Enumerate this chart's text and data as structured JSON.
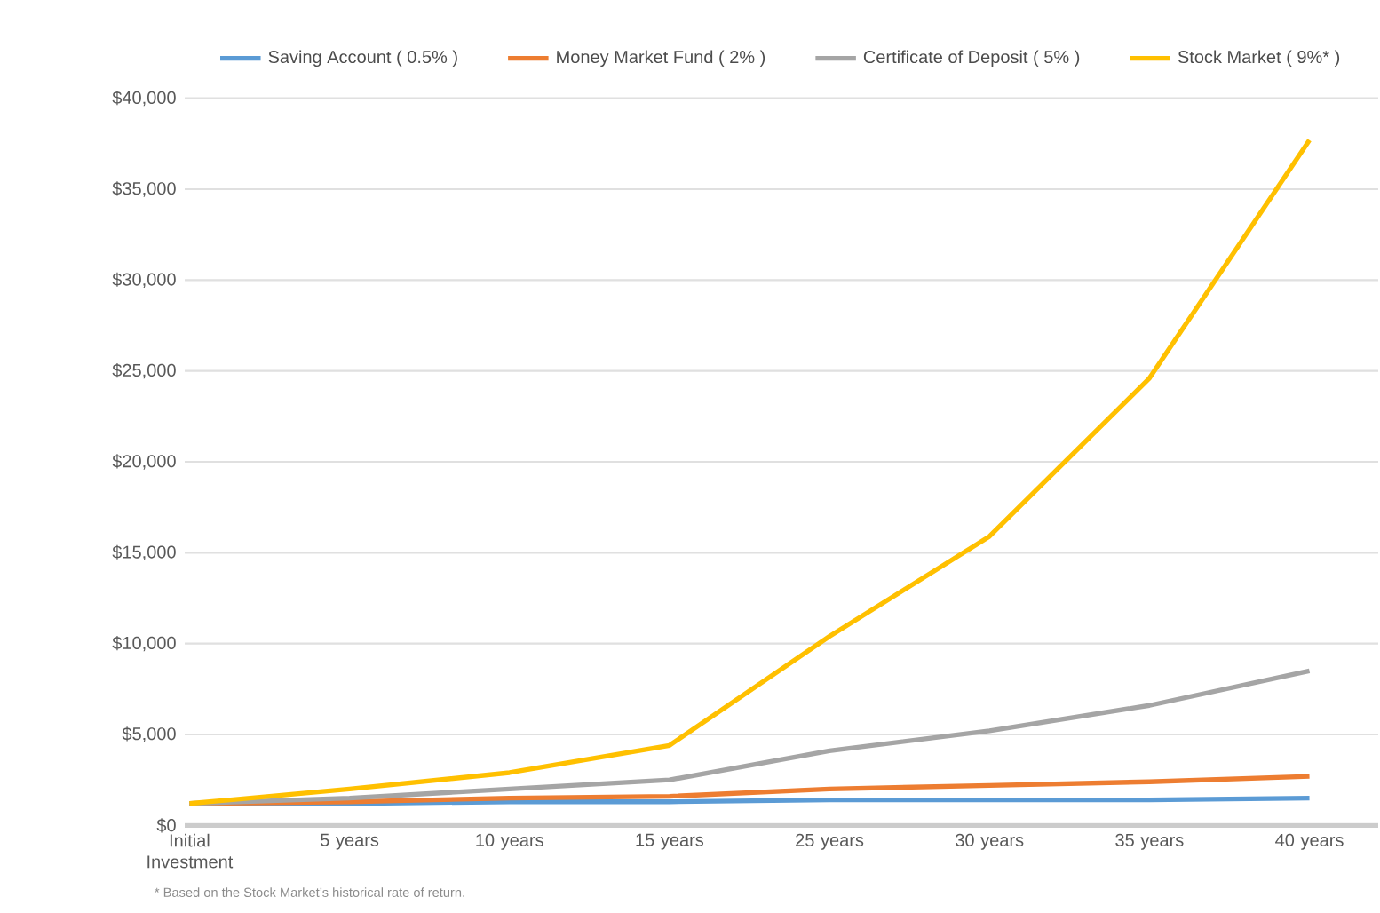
{
  "chart_data": {
    "type": "line",
    "categories": [
      "Initial Investment",
      "5 years",
      "10 years",
      "15 years",
      "25 years",
      "30 years",
      "35 years",
      "40 years"
    ],
    "series": [
      {
        "name": "Saving Account ( 0.5% )",
        "color": "#5b9bd5",
        "values": [
          1200,
          1200,
          1300,
          1300,
          1400,
          1400,
          1400,
          1500
        ]
      },
      {
        "name": "Money Market Fund ( 2% )",
        "color": "#ed7d31",
        "values": [
          1200,
          1300,
          1500,
          1600,
          2000,
          2200,
          2400,
          2700
        ]
      },
      {
        "name": "Certificate of Deposit ( 5% )",
        "color": "#a5a5a5",
        "values": [
          1200,
          1500,
          2000,
          2500,
          4100,
          5200,
          6600,
          8500
        ]
      },
      {
        "name": "Stock Market ( 9%* )",
        "color": "#ffc000",
        "values": [
          1200,
          2000,
          2900,
          4400,
          10400,
          15900,
          24600,
          37700
        ]
      }
    ],
    "ylim": [
      0,
      40000
    ],
    "yticks": [
      {
        "value": 0,
        "label": "$0"
      },
      {
        "value": 5000,
        "label": "$5,000"
      },
      {
        "value": 10000,
        "label": "$10,000"
      },
      {
        "value": 15000,
        "label": "$15,000"
      },
      {
        "value": 20000,
        "label": "$20,000"
      },
      {
        "value": 25000,
        "label": "$25,000"
      },
      {
        "value": 30000,
        "label": "$30,000"
      },
      {
        "value": 35000,
        "label": "$35,000"
      },
      {
        "value": 40000,
        "label": "$40,000"
      }
    ],
    "grid": "y",
    "legend": "top",
    "marker": "none",
    "line_style": "solid",
    "annotations": [
      "* Based on the Stock Market’s historical rate of return."
    ]
  }
}
